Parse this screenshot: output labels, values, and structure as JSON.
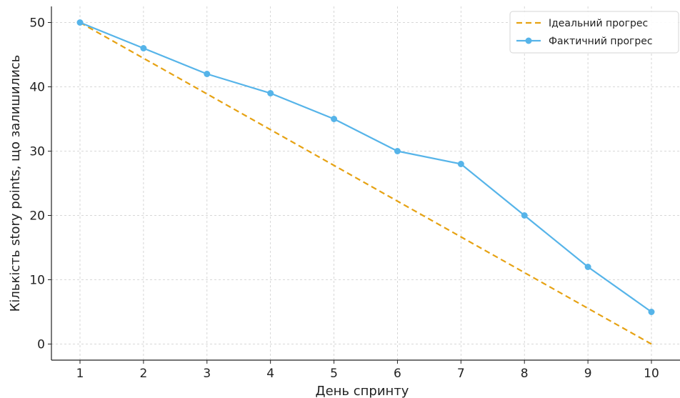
{
  "chart_data": {
    "type": "line",
    "title": "",
    "xlabel": "День спринту",
    "ylabel": "Кількість story points, що залишились",
    "x": [
      1,
      2,
      3,
      4,
      5,
      6,
      7,
      8,
      9,
      10
    ],
    "xlim": [
      0.55,
      10.45
    ],
    "ylim": [
      -2.5,
      52.5
    ],
    "xticks": [
      1,
      2,
      3,
      4,
      5,
      6,
      7,
      8,
      9,
      10
    ],
    "yticks": [
      0,
      10,
      20,
      30,
      40,
      50
    ],
    "grid": true,
    "legend_position": "top-right",
    "series": [
      {
        "name": "Ідеальний прогрес",
        "style": "dashed",
        "markers": false,
        "color": "#E6A213",
        "values": [
          50,
          44.44,
          38.89,
          33.33,
          27.78,
          22.22,
          16.67,
          11.11,
          5.56,
          0
        ]
      },
      {
        "name": "Фактичний прогрес",
        "style": "solid",
        "markers": true,
        "color": "#56B4E9",
        "values": [
          50,
          46,
          42,
          39,
          35,
          30,
          28,
          20,
          12,
          5
        ]
      }
    ]
  }
}
